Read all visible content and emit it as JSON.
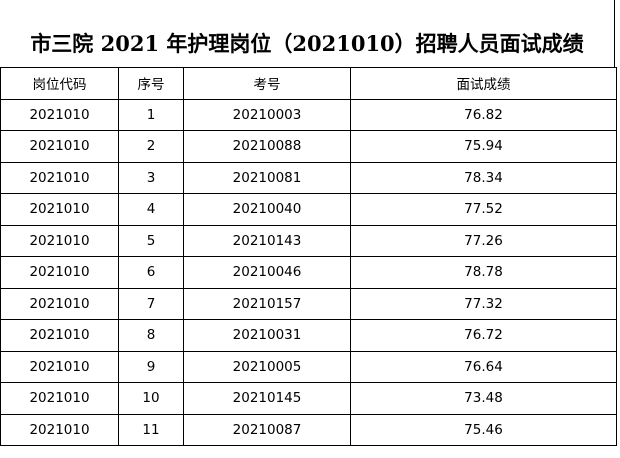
{
  "title": "市三院 2021 年护理岗位（2021010）招聘人员面试成绩",
  "table": {
    "header": [
      "岗位代码",
      "序号",
      "考号",
      "面试成绩"
    ],
    "rows": [
      [
        "2021010",
        "1",
        "20210003",
        "76.82"
      ],
      [
        "2021010",
        "2",
        "20210088",
        "75.94"
      ],
      [
        "2021010",
        "3",
        "20210081",
        "78.34"
      ],
      [
        "2021010",
        "4",
        "20210040",
        "77.52"
      ],
      [
        "2021010",
        "5",
        "20210143",
        "77.26"
      ],
      [
        "2021010",
        "6",
        "20210046",
        "78.78"
      ],
      [
        "2021010",
        "7",
        "20210157",
        "77.32"
      ],
      [
        "2021010",
        "8",
        "20210031",
        "76.72"
      ],
      [
        "2021010",
        "9",
        "20210005",
        "76.64"
      ],
      [
        "2021010",
        "10",
        "20210145",
        "73.48"
      ],
      [
        "2021010",
        "11",
        "20210087",
        "75.46"
      ]
    ]
  }
}
